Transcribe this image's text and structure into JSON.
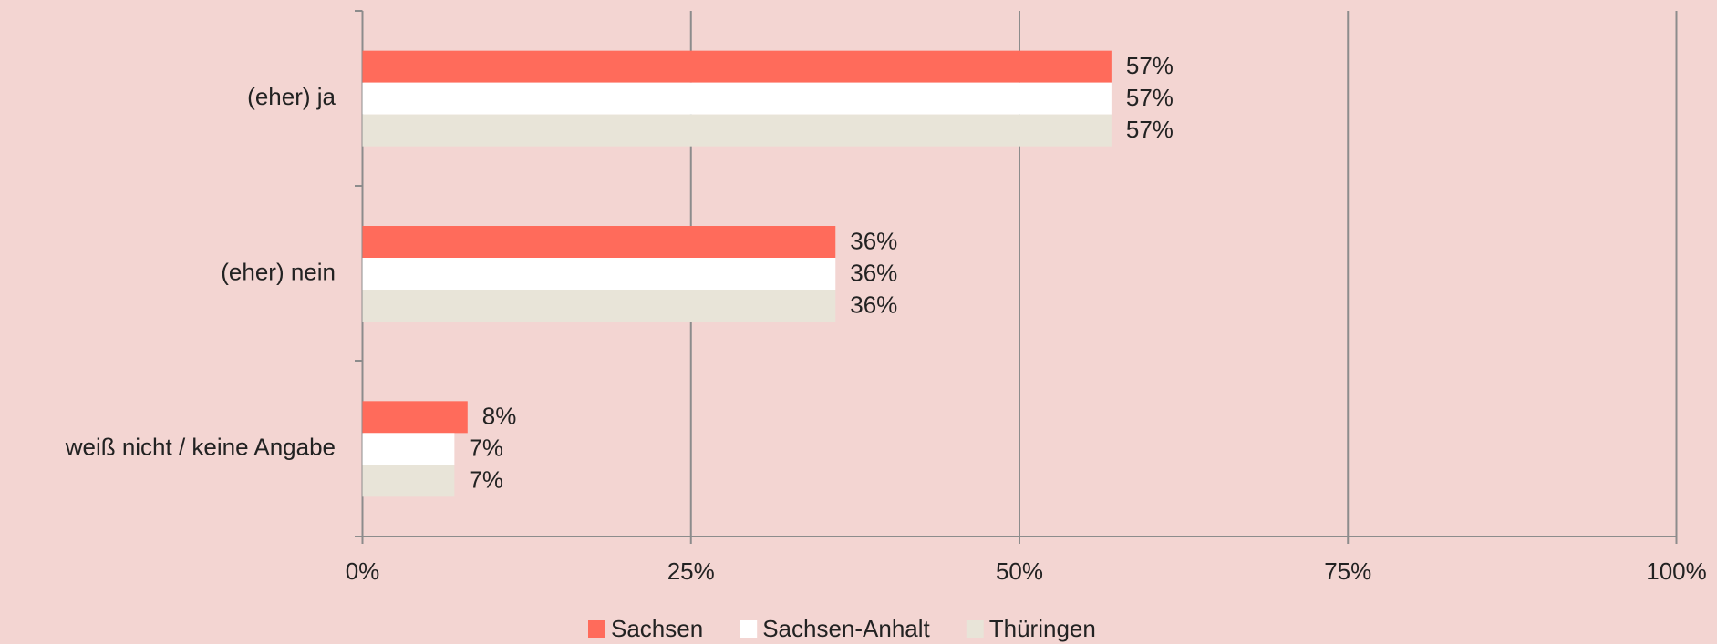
{
  "chart_data": {
    "type": "hbar",
    "categories": [
      "(eher) ja",
      "(eher) nein",
      "weiß nicht / keine Angabe"
    ],
    "series": [
      {
        "name": "Sachsen",
        "color": "#ff6b5b",
        "values": [
          57,
          36,
          8
        ],
        "value_labels": [
          "57%",
          "36%",
          "8%"
        ]
      },
      {
        "name": "Sachsen-Anhalt",
        "color": "#ffffff",
        "values": [
          57,
          36,
          7
        ],
        "value_labels": [
          "57%",
          "36%",
          "7%"
        ]
      },
      {
        "name": "Thüringen",
        "color": "#e8e4d8",
        "values": [
          57,
          36,
          7
        ],
        "value_labels": [
          "57%",
          "36%",
          "7%"
        ]
      }
    ],
    "xlim": [
      0,
      100
    ],
    "xticks": [
      {
        "value": 0,
        "label": "0%"
      },
      {
        "value": 25,
        "label": "25%"
      },
      {
        "value": 50,
        "label": "50%"
      },
      {
        "value": 75,
        "label": "75%"
      },
      {
        "value": 100,
        "label": "100%"
      }
    ],
    "grid": true,
    "legend": "bottom"
  }
}
